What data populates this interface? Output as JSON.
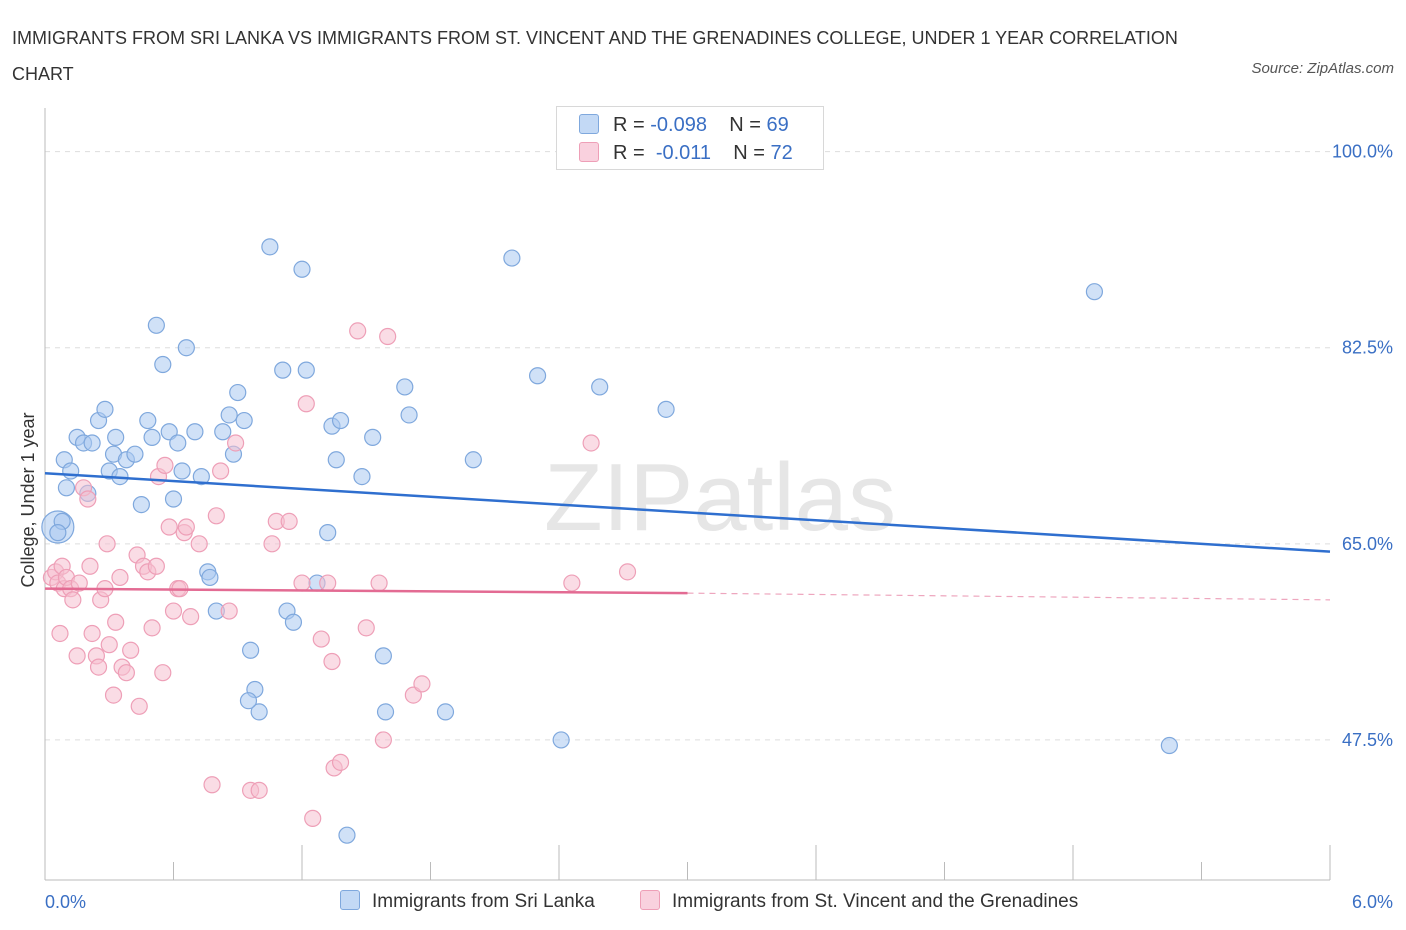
{
  "title": "IMMIGRANTS FROM SRI LANKA VS IMMIGRANTS FROM ST. VINCENT AND THE GRENADINES COLLEGE, UNDER 1 YEAR CORRELATION CHART",
  "source": "Source: ZipAtlas.com",
  "watermark": "ZIPatlas",
  "legend_top": {
    "row1": {
      "r_label": "R =",
      "r_value": "-0.098",
      "n_label": "N =",
      "n_value": "69"
    },
    "row2": {
      "r_label": "R =",
      "r_value": "-0.011",
      "n_label": "N =",
      "n_value": "72"
    }
  },
  "legend_bottom": {
    "series1": "Immigrants from Sri Lanka",
    "series2": "Immigrants from St. Vincent and the Grenadines"
  },
  "colors": {
    "blue_fill": "#a9c9f0",
    "blue_stroke": "#7fa8dd",
    "blue_line": "#2f6fcf",
    "pink_fill": "#f6bfd0",
    "pink_stroke": "#ee9fb7",
    "pink_line": "#e36b93",
    "axis_text": "#3a6fc4",
    "grid": "#dddddd"
  },
  "chart_data": {
    "type": "scatter",
    "title": "IMMIGRANTS FROM SRI LANKA VS IMMIGRANTS FROM ST. VINCENT AND THE GRENADINES COLLEGE, UNDER 1 YEAR CORRELATION CHART",
    "xlabel": "",
    "ylabel": "College, Under 1 year",
    "xlim": [
      0.0,
      6.0
    ],
    "ylim": [
      35.0,
      103.0
    ],
    "x_tick_labels": [
      "0.0%",
      "6.0%"
    ],
    "y_ticks": [
      47.5,
      65.0,
      82.5,
      100.0
    ],
    "y_tick_labels": [
      "47.5%",
      "65.0%",
      "82.5%",
      "100.0%"
    ],
    "series": [
      {
        "name": "Immigrants from Sri Lanka",
        "color": "#a9c9f0",
        "R": -0.098,
        "N": 69,
        "trend": {
          "x": [
            0.0,
            6.0
          ],
          "y": [
            71.3,
            64.3
          ],
          "dashed_from": null
        },
        "points": [
          [
            0.06,
            66.5
          ],
          [
            0.08,
            67.0
          ],
          [
            0.09,
            72.5
          ],
          [
            0.1,
            70.0
          ],
          [
            0.12,
            71.5
          ],
          [
            0.15,
            74.5
          ],
          [
            0.18,
            74.0
          ],
          [
            0.2,
            69.5
          ],
          [
            0.22,
            74.0
          ],
          [
            0.25,
            76.0
          ],
          [
            0.28,
            77.0
          ],
          [
            0.3,
            71.5
          ],
          [
            0.32,
            73.0
          ],
          [
            0.35,
            71.0
          ],
          [
            0.38,
            72.5
          ],
          [
            0.42,
            73.0
          ],
          [
            0.45,
            68.5
          ],
          [
            0.48,
            76.0
          ],
          [
            0.52,
            84.5
          ],
          [
            0.55,
            81.0
          ],
          [
            0.58,
            75.0
          ],
          [
            0.6,
            69.0
          ],
          [
            0.62,
            74.0
          ],
          [
            0.66,
            82.5
          ],
          [
            0.7,
            75.0
          ],
          [
            0.73,
            71.0
          ],
          [
            0.76,
            62.5
          ],
          [
            0.77,
            62.0
          ],
          [
            0.8,
            59.0
          ],
          [
            0.83,
            75.0
          ],
          [
            0.86,
            76.5
          ],
          [
            0.88,
            73.0
          ],
          [
            0.9,
            78.5
          ],
          [
            0.93,
            76.0
          ],
          [
            0.96,
            55.5
          ],
          [
            0.98,
            52.0
          ],
          [
            1.0,
            50.0
          ],
          [
            1.05,
            91.5
          ],
          [
            1.11,
            80.5
          ],
          [
            1.13,
            59.0
          ],
          [
            1.16,
            58.0
          ],
          [
            1.2,
            89.5
          ],
          [
            1.22,
            80.5
          ],
          [
            1.27,
            61.5
          ],
          [
            1.32,
            66.0
          ],
          [
            1.34,
            75.5
          ],
          [
            1.36,
            72.5
          ],
          [
            1.38,
            76.0
          ],
          [
            1.48,
            71.0
          ],
          [
            1.53,
            74.5
          ],
          [
            1.58,
            55.0
          ],
          [
            1.59,
            50.0
          ],
          [
            1.68,
            79.0
          ],
          [
            1.7,
            76.5
          ],
          [
            1.87,
            50.0
          ],
          [
            2.0,
            72.5
          ],
          [
            2.18,
            90.5
          ],
          [
            2.3,
            80.0
          ],
          [
            2.41,
            47.5
          ],
          [
            2.59,
            79.0
          ],
          [
            2.9,
            77.0
          ],
          [
            4.9,
            87.5
          ],
          [
            5.25,
            47.0
          ],
          [
            1.41,
            39.0
          ],
          [
            0.95,
            51.0
          ],
          [
            0.5,
            74.5
          ],
          [
            0.33,
            74.5
          ],
          [
            0.06,
            66.0
          ],
          [
            0.64,
            71.5
          ]
        ]
      },
      {
        "name": "Immigrants from St. Vincent and the Grenadines",
        "color": "#f6bfd0",
        "R": -0.011,
        "N": 72,
        "trend": {
          "x": [
            0.0,
            3.0
          ],
          "y": [
            61.0,
            60.6
          ],
          "dashed_from": 3.0,
          "dashed_to": 6.0,
          "dashed_end_y": 60.0
        },
        "points": [
          [
            0.03,
            62.0
          ],
          [
            0.05,
            62.5
          ],
          [
            0.06,
            61.5
          ],
          [
            0.07,
            57.0
          ],
          [
            0.08,
            63.0
          ],
          [
            0.09,
            61.0
          ],
          [
            0.1,
            62.0
          ],
          [
            0.12,
            61.0
          ],
          [
            0.13,
            60.0
          ],
          [
            0.15,
            55.0
          ],
          [
            0.16,
            61.5
          ],
          [
            0.18,
            70.0
          ],
          [
            0.2,
            69.0
          ],
          [
            0.21,
            63.0
          ],
          [
            0.22,
            57.0
          ],
          [
            0.24,
            55.0
          ],
          [
            0.25,
            54.0
          ],
          [
            0.26,
            60.0
          ],
          [
            0.28,
            61.0
          ],
          [
            0.29,
            65.0
          ],
          [
            0.3,
            56.0
          ],
          [
            0.32,
            51.5
          ],
          [
            0.33,
            58.0
          ],
          [
            0.35,
            62.0
          ],
          [
            0.36,
            54.0
          ],
          [
            0.38,
            53.5
          ],
          [
            0.4,
            55.5
          ],
          [
            0.43,
            64.0
          ],
          [
            0.44,
            50.5
          ],
          [
            0.46,
            63.0
          ],
          [
            0.48,
            62.5
          ],
          [
            0.5,
            57.5
          ],
          [
            0.52,
            63.0
          ],
          [
            0.53,
            71.0
          ],
          [
            0.55,
            53.5
          ],
          [
            0.56,
            72.0
          ],
          [
            0.58,
            66.5
          ],
          [
            0.6,
            59.0
          ],
          [
            0.62,
            61.0
          ],
          [
            0.63,
            61.0
          ],
          [
            0.65,
            66.0
          ],
          [
            0.66,
            66.5
          ],
          [
            0.68,
            58.5
          ],
          [
            0.72,
            65.0
          ],
          [
            0.78,
            43.5
          ],
          [
            0.8,
            67.5
          ],
          [
            0.82,
            71.5
          ],
          [
            0.86,
            59.0
          ],
          [
            0.89,
            74.0
          ],
          [
            0.96,
            43.0
          ],
          [
            1.0,
            43.0
          ],
          [
            1.06,
            65.0
          ],
          [
            1.08,
            67.0
          ],
          [
            1.14,
            67.0
          ],
          [
            1.2,
            61.5
          ],
          [
            1.22,
            77.5
          ],
          [
            1.25,
            40.5
          ],
          [
            1.29,
            56.5
          ],
          [
            1.32,
            61.5
          ],
          [
            1.34,
            54.5
          ],
          [
            1.35,
            45.0
          ],
          [
            1.38,
            45.5
          ],
          [
            1.46,
            84.0
          ],
          [
            1.5,
            57.5
          ],
          [
            1.56,
            61.5
          ],
          [
            1.58,
            47.5
          ],
          [
            1.6,
            83.5
          ],
          [
            1.72,
            51.5
          ],
          [
            1.76,
            52.5
          ],
          [
            2.46,
            61.5
          ],
          [
            2.55,
            74.0
          ],
          [
            2.72,
            62.5
          ]
        ]
      }
    ]
  }
}
